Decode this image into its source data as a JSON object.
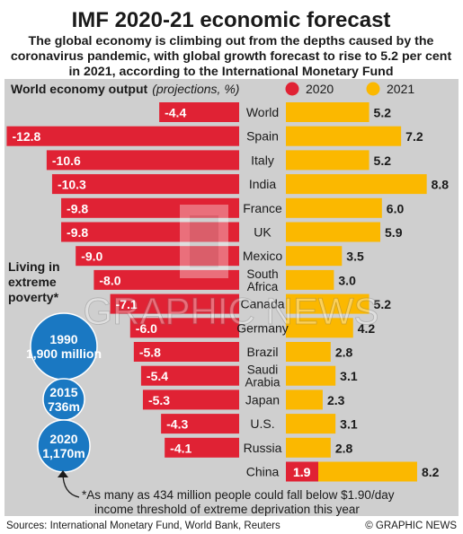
{
  "header": {
    "title": "IMF 2020-21 economic forecast",
    "subtitle_lines": [
      "The global economy is climbing out from the depths caused by the",
      "coronavirus pandemic, with global growth forecast to rise to 5.2 per cent",
      "in 2021, according to the International Monetary Fund"
    ]
  },
  "chart_data": {
    "type": "bar",
    "title": "World economy output",
    "title_suffix": "(projections, %)",
    "orientation": "horizontal",
    "categories": [
      "World",
      "Spain",
      "Italy",
      "India",
      "France",
      "UK",
      "Mexico",
      "South Africa",
      "Canada",
      "Germany",
      "Brazil",
      "Saudi Arabia",
      "Japan",
      "U.S.",
      "Russia",
      "China"
    ],
    "series": [
      {
        "name": "2020",
        "color": "#e02234",
        "values": [
          -4.4,
          -12.8,
          -10.6,
          -10.3,
          -9.8,
          -9.8,
          -9.0,
          -8.0,
          -7.1,
          -6.0,
          -5.8,
          -5.4,
          -5.3,
          -4.3,
          -4.1,
          1.9
        ]
      },
      {
        "name": "2021",
        "color": "#fbb800",
        "values": [
          5.2,
          7.2,
          5.2,
          8.8,
          6.0,
          5.9,
          3.5,
          3.0,
          5.2,
          4.2,
          2.8,
          3.1,
          2.3,
          3.1,
          2.8,
          8.2
        ]
      }
    ],
    "value_labels_2020": [
      "-4.4",
      "-12.8",
      "-10.6",
      "-10.3",
      "-9.8",
      "-9.8",
      "-9.0",
      "-8.0",
      "-7.1",
      "-6.0",
      "-5.8",
      "-5.4",
      "-5.3",
      "-4.3",
      "-4.1",
      "1.9"
    ],
    "value_labels_2021": [
      "5.2",
      "7.2",
      "5.2",
      "8.8",
      "6.0",
      "5.9",
      "3.5",
      "3.0",
      "5.2",
      "4.2",
      "2.8",
      "3.1",
      "2.3",
      "3.1",
      "2.8",
      "8.2"
    ],
    "legend_placement": "top-right",
    "grid": false
  },
  "poverty": {
    "heading_lines": [
      "Living in",
      "extreme",
      "poverty*"
    ],
    "color": "#1a78c2",
    "circles": [
      {
        "year": "1990",
        "label": "1,900 million",
        "millions": 1900
      },
      {
        "year": "2015",
        "label": "736m",
        "millions": 736
      },
      {
        "year": "2020",
        "label": "1,170m",
        "millions": 1170
      }
    ],
    "footnote_lines": [
      "*As many as 434 million people could fall below $1.90/day",
      "income threshold of extreme deprivation this year"
    ]
  },
  "footer": {
    "sources": "Sources: International Monetary Fund, World Bank, Reuters",
    "credit": "© GRAPHIC NEWS"
  },
  "watermark": "GRAPHIC NEWS",
  "colors": {
    "panel_bg": "#cfcfcf",
    "text": "#1a1a1a",
    "red": "#e02234",
    "yellow": "#fbb800",
    "blue": "#1a78c2"
  }
}
